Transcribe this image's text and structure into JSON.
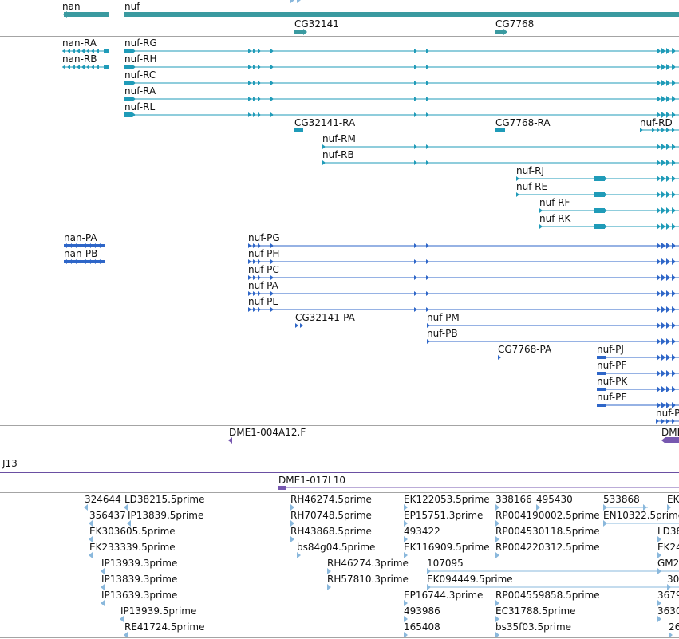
{
  "colors": {
    "gene": "#3a9aa0",
    "transcript": "#1f9bb8",
    "protein": "#2e66c8",
    "clone": "#7758b0",
    "est": "#8ab8dc",
    "separator": "#a4a4a4"
  },
  "gene_track": {
    "genes": [
      {
        "label": "nan",
        "strand": "-"
      },
      {
        "label": "nuf",
        "strand": "+"
      },
      {
        "label": "CG32141",
        "strand": "+"
      },
      {
        "label": "CG7768",
        "strand": "+"
      }
    ]
  },
  "transcript_track": {
    "items": [
      {
        "label": "nan-RA"
      },
      {
        "label": "nan-RB"
      },
      {
        "label": "nuf-RG"
      },
      {
        "label": "nuf-RH"
      },
      {
        "label": "nuf-RC"
      },
      {
        "label": "nuf-RA"
      },
      {
        "label": "nuf-RL"
      },
      {
        "label": "CG32141-RA"
      },
      {
        "label": "CG7768-RA"
      },
      {
        "label": "nuf-RD"
      },
      {
        "label": "nuf-RM"
      },
      {
        "label": "nuf-RB"
      },
      {
        "label": "nuf-RJ"
      },
      {
        "label": "nuf-RE"
      },
      {
        "label": "nuf-RF"
      },
      {
        "label": "nuf-RK"
      }
    ]
  },
  "protein_track": {
    "items": [
      {
        "label": "nan-PA"
      },
      {
        "label": "nan-PB"
      },
      {
        "label": "nuf-PG"
      },
      {
        "label": "nuf-PH"
      },
      {
        "label": "nuf-PC"
      },
      {
        "label": "nuf-PA"
      },
      {
        "label": "nuf-PL"
      },
      {
        "label": "CG32141-PA"
      },
      {
        "label": "nuf-PM"
      },
      {
        "label": "nuf-PB"
      },
      {
        "label": "CG7768-PA"
      },
      {
        "label": "nuf-PJ"
      },
      {
        "label": "nuf-PF"
      },
      {
        "label": "nuf-PK"
      },
      {
        "label": "nuf-PE"
      },
      {
        "label": "nuf-P"
      }
    ]
  },
  "clone_track": {
    "items": [
      {
        "label": "DME1-004A12.F"
      },
      {
        "label": "DMI"
      },
      {
        "label": "J13"
      },
      {
        "label": "DME1-017L10"
      }
    ]
  },
  "est_track": {
    "items": [
      {
        "label": "324644"
      },
      {
        "label": "LD38215.5prime"
      },
      {
        "label": "356437"
      },
      {
        "label": "IP13839.5prime"
      },
      {
        "label": "EK303605.5prime"
      },
      {
        "label": "EK233339.5prime"
      },
      {
        "label": "IP13939.3prime"
      },
      {
        "label": "IP13839.3prime"
      },
      {
        "label": "IP13639.3prime"
      },
      {
        "label": "IP13939.5prime"
      },
      {
        "label": "RE41724.5prime"
      },
      {
        "label": "RH46274.5prime"
      },
      {
        "label": "RH70748.5prime"
      },
      {
        "label": "RH43868.5prime"
      },
      {
        "label": "bs84g04.5prime"
      },
      {
        "label": "RH46274.3prime"
      },
      {
        "label": "RH57810.3prime"
      },
      {
        "label": "EK122053.5prime"
      },
      {
        "label": "EP15751.3prime"
      },
      {
        "label": "493422"
      },
      {
        "label": "EK116909.5prime"
      },
      {
        "label": "107095"
      },
      {
        "label": "EK094449.5prime"
      },
      {
        "label": "EP16744.3prime"
      },
      {
        "label": "493986"
      },
      {
        "label": "165408"
      },
      {
        "label": "338166"
      },
      {
        "label": "495430"
      },
      {
        "label": "RP004190002.5prime"
      },
      {
        "label": "RP004530118.5prime"
      },
      {
        "label": "RP004220312.5prime"
      },
      {
        "label": "RP004559858.5prime"
      },
      {
        "label": "EC31788.5prime"
      },
      {
        "label": "bs35f03.5prime"
      },
      {
        "label": "533868"
      },
      {
        "label": "EN10322.5prime"
      },
      {
        "label": "EK"
      },
      {
        "label": "LD38"
      },
      {
        "label": "EK24"
      },
      {
        "label": "GM2"
      },
      {
        "label": "30"
      },
      {
        "label": "3679"
      },
      {
        "label": "3630"
      },
      {
        "label": "26"
      }
    ]
  }
}
